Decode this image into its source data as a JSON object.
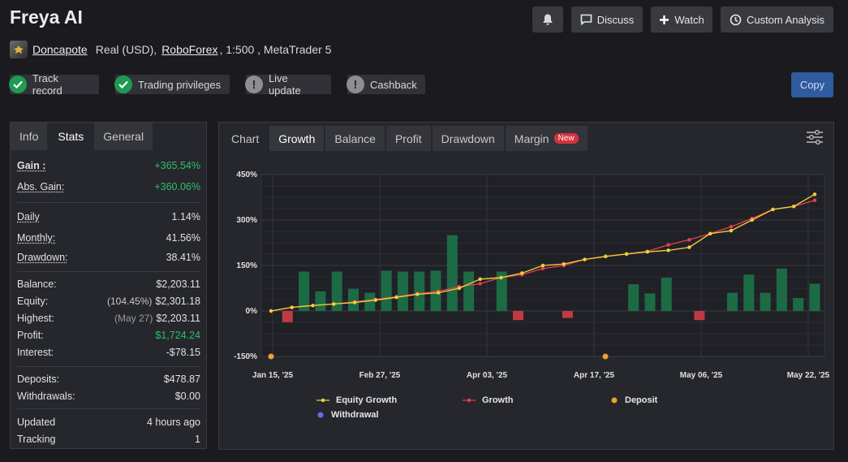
{
  "header": {
    "title": "Freya AI",
    "discuss": "Discuss",
    "watch": "Watch",
    "custom_analysis": "Custom Analysis",
    "copy": "Copy"
  },
  "meta": {
    "user": "Doncapote",
    "account": "Real (USD),",
    "broker": "RoboForex",
    "rest": ", 1:500 , MetaTrader 5"
  },
  "badges": [
    {
      "label": "Track record",
      "status": "check"
    },
    {
      "label": "Trading privileges",
      "status": "check"
    },
    {
      "label": "Live update",
      "status": "warning"
    },
    {
      "label": "Cashback",
      "status": "warning"
    }
  ],
  "left_tabs": [
    "Info",
    "Stats",
    "General"
  ],
  "stats": {
    "gain": {
      "label": "Gain :",
      "value": "+365.54%"
    },
    "abs_gain": {
      "label": "Abs. Gain:",
      "value": "+360.06%"
    },
    "daily": {
      "label": "Daily",
      "value": "1.14%"
    },
    "monthly": {
      "label": "Monthly:",
      "value": "41.56%"
    },
    "drawdown": {
      "label": "Drawdown:",
      "value": "38.41%"
    },
    "balance": {
      "label": "Balance:",
      "value": "$2,203.11"
    },
    "equity": {
      "label": "Equity:",
      "note": "(104.45%)",
      "value": "$2,301.18"
    },
    "highest": {
      "label": "Highest:",
      "note": "(May 27)",
      "value": "$2,203.11"
    },
    "profit": {
      "label": "Profit:",
      "value": "$1,724.24"
    },
    "interest": {
      "label": "Interest:",
      "value": "-$78.15"
    },
    "deposits": {
      "label": "Deposits:",
      "value": "$478.87"
    },
    "withdrawals": {
      "label": "Withdrawals:",
      "value": "$0.00"
    },
    "updated": {
      "label": "Updated",
      "value": "4 hours ago"
    },
    "tracking": {
      "label": "Tracking",
      "value": "1"
    }
  },
  "chart_tabs": [
    "Chart",
    "Growth",
    "Balance",
    "Profit",
    "Drawdown",
    "Margin"
  ],
  "chart_new_badge": "New",
  "colors": {
    "equity": "#f2d13a",
    "growth": "#e8404b",
    "deposit": "#f0a030",
    "withdrawal": "#6a6af0",
    "bar_pos": "#1d6b45",
    "bar_neg": "#c03a44"
  },
  "chart_data": {
    "type": "bar",
    "ylim": [
      -150,
      450
    ],
    "yticks": [
      "450%",
      "300%",
      "150%",
      "0%",
      "-150%"
    ],
    "ytick_values": [
      450,
      300,
      150,
      0,
      -150
    ],
    "xticks": [
      "Jan 15, '25",
      "Feb 27, '25",
      "Apr 03, '25",
      "Apr 17, '25",
      "May 06, '25",
      "May 22, '25"
    ],
    "bars": [
      0,
      -37,
      130,
      65,
      130,
      73,
      60,
      133,
      130,
      130,
      133,
      250,
      130,
      0,
      130,
      -30,
      0,
      0,
      -23,
      0,
      0,
      0,
      88,
      58,
      110,
      0,
      -30,
      0,
      60,
      120,
      60,
      140,
      43,
      90
    ],
    "equity_growth": [
      0,
      12,
      18,
      23,
      28,
      36,
      45,
      55,
      60,
      75,
      105,
      110,
      125,
      150,
      155,
      170,
      180,
      188,
      195,
      200,
      210,
      255,
      265,
      300,
      335,
      345,
      385
    ],
    "growth": [
      0,
      12,
      18,
      23,
      30,
      38,
      47,
      57,
      65,
      80,
      90,
      110,
      120,
      140,
      150,
      170,
      180,
      188,
      197,
      218,
      235,
      255,
      278,
      305,
      335,
      345,
      365
    ],
    "deposits": [
      -150,
      -150
    ],
    "legend": [
      "Equity Growth",
      "Growth",
      "Deposit",
      "Withdrawal"
    ]
  }
}
